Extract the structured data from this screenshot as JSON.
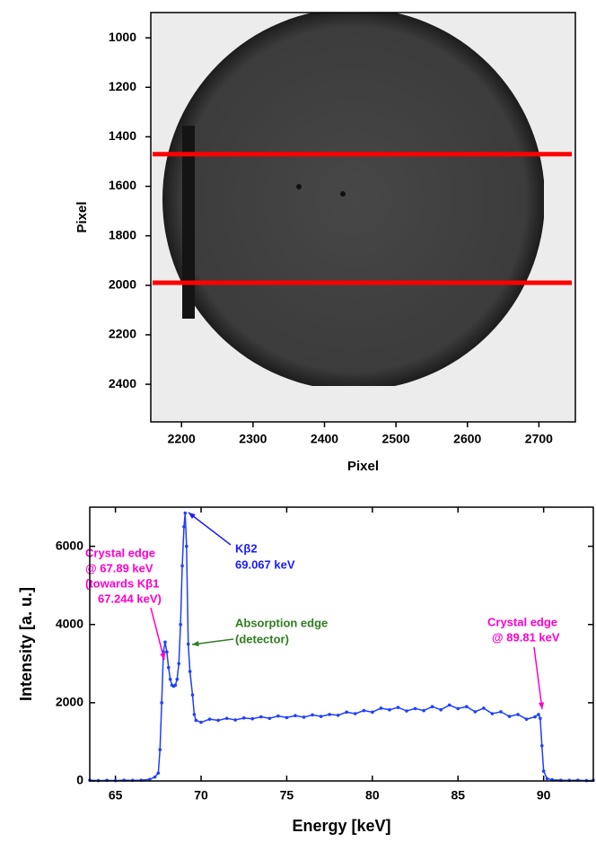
{
  "chart_data": [
    {
      "type": "image",
      "xlabel": "Pixel",
      "ylabel": "Pixel",
      "xlim": [
        2157,
        2751
      ],
      "xticks": [
        2200,
        2300,
        2400,
        2500,
        2600,
        2700
      ],
      "ylim": [
        2552,
        898
      ],
      "yticks": [
        1000,
        1200,
        1400,
        1600,
        1800,
        2000,
        2200,
        2400
      ],
      "hlines": {
        "values": [
          1470,
          1990
        ],
        "color": "#ff0000"
      }
    },
    {
      "type": "line",
      "xlabel": "Energy [keV]",
      "ylabel": "Intensity [a. u.]",
      "xlim": [
        63.5,
        92.9
      ],
      "xticks": [
        65,
        70,
        75,
        80,
        85,
        90
      ],
      "ylim": [
        0,
        7000
      ],
      "yticks": [
        0,
        2000,
        4000,
        6000
      ],
      "series": [
        {
          "color": "#1f3fff",
          "x": [
            63.5,
            64,
            64.5,
            65,
            65.5,
            66,
            66.5,
            67,
            67.3,
            67.5,
            67.6,
            67.7,
            67.8,
            67.9,
            68.0,
            68.1,
            68.2,
            68.3,
            68.4,
            68.5,
            68.6,
            68.7,
            68.8,
            68.9,
            69.0,
            69.07,
            69.15,
            69.25,
            69.35,
            69.5,
            69.6,
            69.7,
            70,
            70.5,
            71,
            71.5,
            72,
            72.5,
            73,
            73.5,
            74,
            74.5,
            75,
            75.5,
            76,
            76.5,
            77,
            77.5,
            78,
            78.5,
            79,
            79.5,
            80,
            80.5,
            81,
            81.5,
            82,
            82.5,
            83,
            83.5,
            84,
            84.5,
            85,
            85.5,
            86,
            86.5,
            87,
            87.5,
            88,
            88.5,
            89,
            89.5,
            89.7,
            89.8,
            89.9,
            90,
            90.2,
            90.5,
            91,
            91.5,
            92,
            92.5,
            92.9
          ],
          "values": [
            20,
            10,
            15,
            10,
            20,
            15,
            20,
            40,
            100,
            200,
            800,
            2000,
            3300,
            3550,
            3300,
            2900,
            2600,
            2450,
            2420,
            2450,
            2600,
            3000,
            4000,
            5500,
            6500,
            6850,
            6000,
            3500,
            2800,
            2200,
            1700,
            1550,
            1500,
            1580,
            1550,
            1600,
            1560,
            1610,
            1590,
            1640,
            1600,
            1660,
            1620,
            1670,
            1630,
            1690,
            1650,
            1700,
            1680,
            1760,
            1720,
            1800,
            1760,
            1860,
            1820,
            1880,
            1790,
            1850,
            1800,
            1900,
            1820,
            1940,
            1850,
            1900,
            1770,
            1860,
            1720,
            1770,
            1650,
            1700,
            1580,
            1640,
            1700,
            1600,
            900,
            250,
            60,
            30,
            20,
            15,
            20,
            10,
            15
          ]
        }
      ],
      "annotations": [
        {
          "lines": [
            "Crystal edge",
            "@ 67.89 keV",
            "(towards Kβ1",
            "67.244 keV)"
          ],
          "color": "#ff00cc"
        },
        {
          "lines": [
            "Kβ2",
            "69.067 keV"
          ],
          "color": "#1a1aff"
        },
        {
          "lines": [
            "Absorption edge",
            "(detector)"
          ],
          "color": "#2e7d1e"
        },
        {
          "lines": [
            "Crystal edge",
            "@ 89.81 keV"
          ],
          "color": "#ff00cc"
        }
      ]
    }
  ]
}
